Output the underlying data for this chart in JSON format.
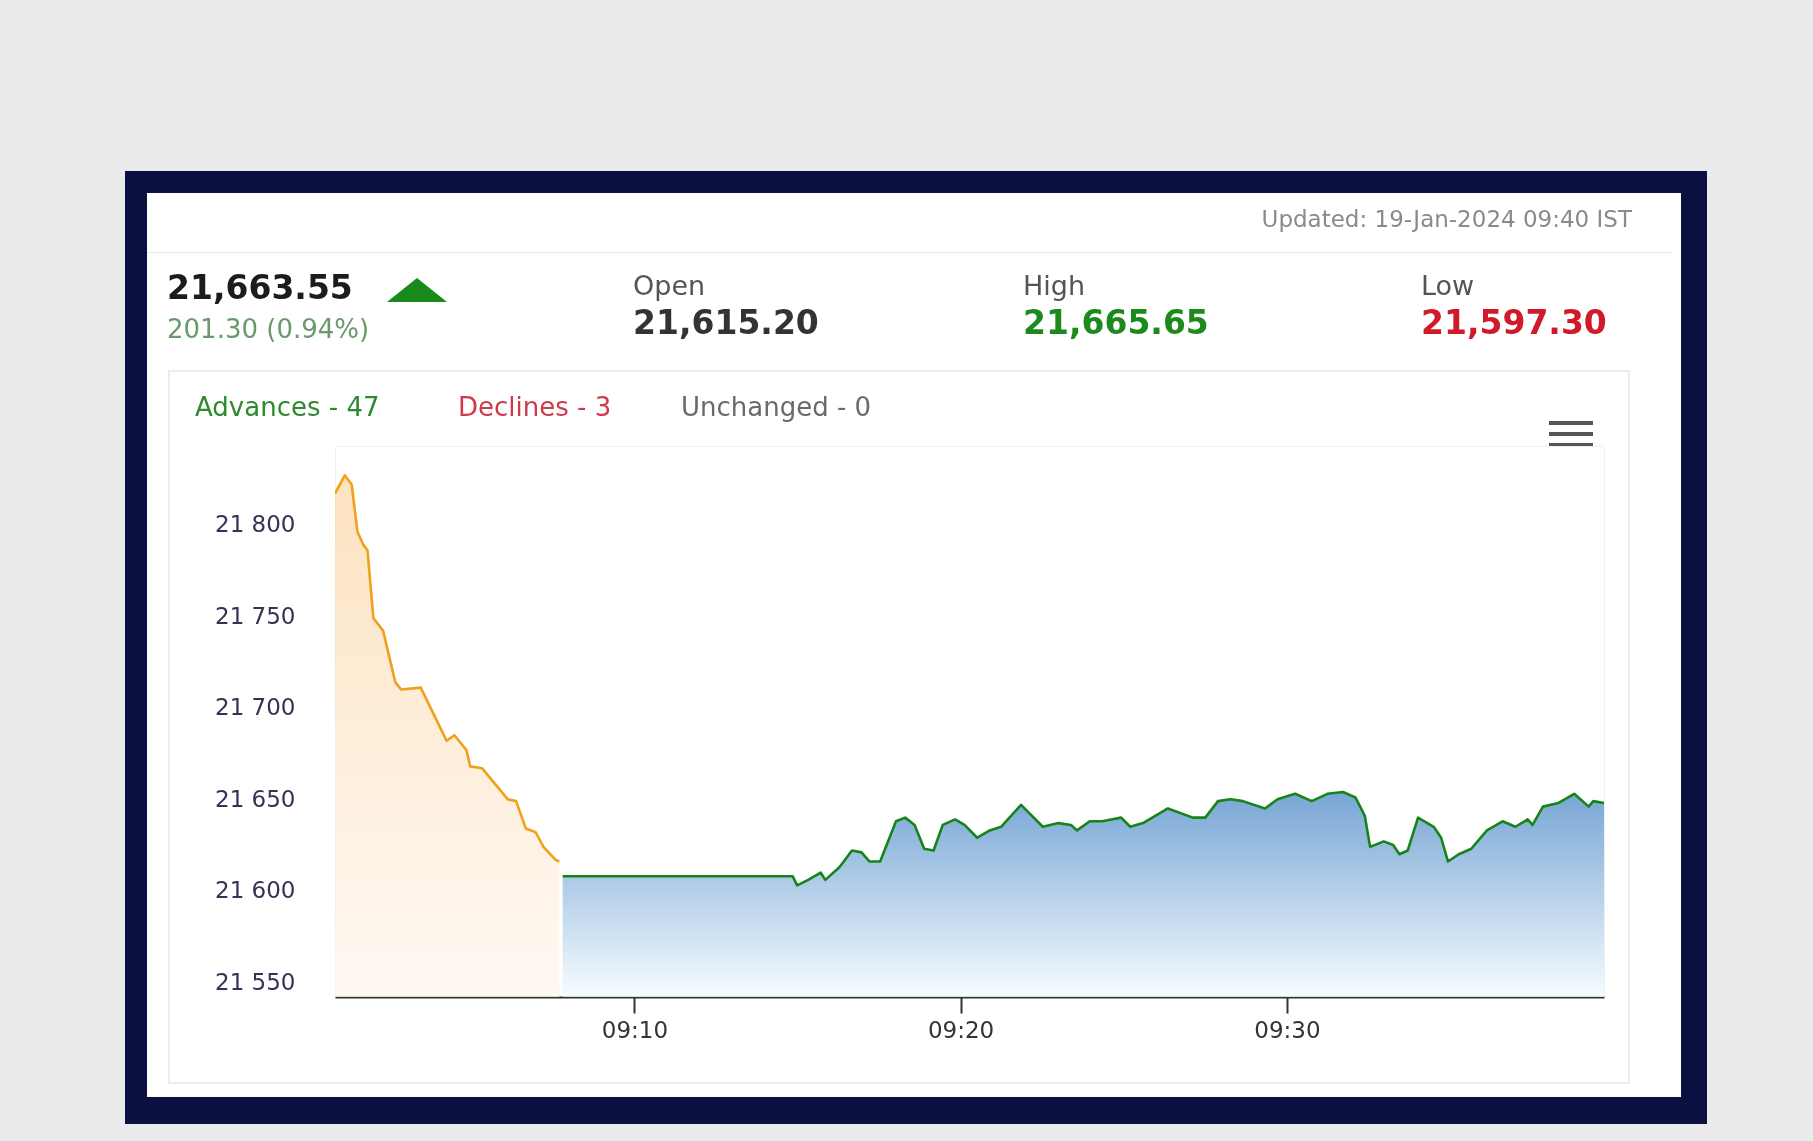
{
  "chart_data": {
    "type": "area",
    "title": "21,663.55",
    "subtitle": "201.30 (0.94%)",
    "annotations": [
      "Updated: 19-Jan-2024 09:40 IST",
      "Open",
      "21,615.20",
      "High",
      "21,665.65",
      "Low",
      "21,597.30",
      "Advances - 47",
      "Declines - 3",
      "Unchanged - 0"
    ],
    "series": [
      {
        "color": "#f0a11c",
        "x": [
          9.0137,
          9.0187,
          9.0222,
          9.0252,
          9.0282,
          9.0303,
          9.0333,
          9.0383,
          9.0445,
          9.0475,
          9.0575,
          9.0657,
          9.0707,
          9.0747,
          9.0808,
          9.0828,
          9.0888,
          9.102,
          9.1062,
          9.1112,
          9.1162,
          9.1202,
          9.1263,
          9.1283
        ],
        "values": [
          21817,
          21827,
          21822,
          21796,
          21789,
          21786,
          21749,
          21742,
          21714,
          21710,
          21711,
          21693,
          21682,
          21685,
          21677,
          21668,
          21667,
          21650,
          21649,
          21634,
          21632,
          21624,
          21617,
          21616
        ]
      },
      {
        "color": "#17841a",
        "x": [
          9.13,
          9.2475,
          9.2498,
          9.2555,
          9.2618,
          9.2642,
          9.2715,
          9.2778,
          9.2827,
          9.2868,
          9.2922,
          9.3003,
          9.305,
          9.3098,
          9.3147,
          9.3195,
          9.3242,
          9.3305,
          9.3353,
          9.3418,
          9.3482,
          9.354,
          9.3642,
          9.3753,
          9.3833,
          9.3897,
          9.3928,
          9.3993,
          9.4057,
          9.4153,
          9.42,
          9.4265,
          9.4392,
          9.452,
          9.4583,
          9.4648,
          9.4712,
          9.4775,
          9.4888,
          9.4952,
          9.5042,
          9.5127,
          9.5207,
          9.5287,
          9.535,
          9.5398,
          9.5425,
          9.5495,
          9.5543,
          9.5575,
          9.5617,
          9.567,
          9.575,
          9.5788,
          9.5823,
          9.5878,
          9.5942,
          9.6022,
          9.6102,
          9.6167,
          9.623,
          9.6255,
          9.6308,
          9.6388,
          9.6468,
          9.6542,
          9.6565,
          9.662
        ],
        "values": [
          21608,
          21608,
          21603,
          21606,
          21610,
          21606,
          21613,
          21622,
          21621,
          21616,
          21616,
          21638,
          21640,
          21636,
          21623,
          21622,
          21636,
          21639,
          21636,
          21629,
          21633,
          21635,
          21647,
          21635,
          21637,
          21636,
          21633,
          21638,
          21638,
          21640,
          21635,
          21637,
          21645,
          21640,
          21640,
          21649,
          21650,
          21649,
          21645,
          21650,
          21653,
          21649,
          21653,
          21654,
          21651,
          21641,
          21624,
          21627,
          21625,
          21620,
          21622,
          21640,
          21635,
          21629,
          21616,
          21620,
          21623,
          21633,
          21638,
          21635,
          21639,
          21636,
          21646,
          21648,
          21653,
          21646,
          21649,
          21648
        ]
      }
    ],
    "xlim": [
      9.0137,
      9.662
    ],
    "xticks": [
      {
        "value": 9.1667,
        "label": "09:10"
      },
      {
        "value": 9.3333,
        "label": "09:20"
      },
      {
        "value": 9.5,
        "label": "09:30"
      }
    ],
    "ylim": [
      21542,
      21843
    ],
    "yticks": [
      {
        "value": 21550,
        "label": "21 550"
      },
      {
        "value": 21600,
        "label": "21 600"
      },
      {
        "value": 21650,
        "label": "21 650"
      },
      {
        "value": 21700,
        "label": "21 700"
      },
      {
        "value": 21750,
        "label": "21 750"
      },
      {
        "value": 21800,
        "label": "21 800"
      }
    ]
  }
}
